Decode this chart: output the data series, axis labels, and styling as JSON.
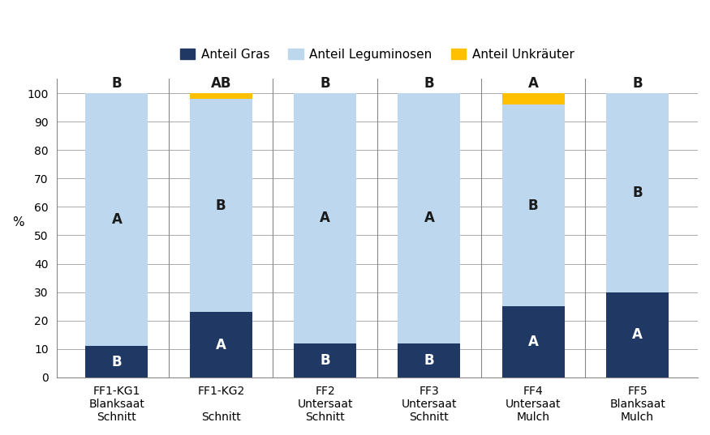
{
  "categories": [
    "FF1-KG1\nBlanksaat\nSchnitt",
    "FF1-KG2\n\nSchnitt",
    "FF2\nUntersaat\nSchnitt",
    "FF3\nUntersaat\nSchnitt",
    "FF4\nUntersaat\nMulch",
    "FF5\nBlanksaat\nMulch"
  ],
  "gras": [
    11,
    23,
    12,
    12,
    25,
    30
  ],
  "leguminosen": [
    89,
    75,
    88,
    88,
    71,
    70
  ],
  "unkraeuter": [
    0,
    2,
    0,
    0,
    4,
    0
  ],
  "color_gras": "#1F3864",
  "color_leguminosen": "#BDD7EE",
  "color_unkraeuter": "#FFC000",
  "legend_labels": [
    "Anteil Gras",
    "Anteil Leguminosen",
    "Anteil Unkräuter"
  ],
  "gras_labels": [
    "B",
    "A",
    "B",
    "B",
    "A",
    "A"
  ],
  "legu_labels": [
    "A",
    "B",
    "A",
    "A",
    "B",
    "B"
  ],
  "top_labels": [
    "B",
    "AB",
    "B",
    "B",
    "A",
    "B"
  ],
  "ylabel": "%",
  "ylim": [
    0,
    105
  ],
  "yticks": [
    0,
    10,
    20,
    30,
    40,
    50,
    60,
    70,
    80,
    90,
    100
  ],
  "bar_width": 0.6,
  "figure_width": 8.75,
  "figure_height": 5.37,
  "dpi": 100,
  "bg_color": "#FFFFFF",
  "grid_color": "#AAAAAA",
  "axis_label_fontsize": 11,
  "tick_fontsize": 10,
  "legend_fontsize": 11,
  "bar_label_fontsize": 12,
  "legu_label_color": "#1A1A1A",
  "gras_label_color": "#FFFFFF",
  "top_label_color": "#1A1A1A"
}
